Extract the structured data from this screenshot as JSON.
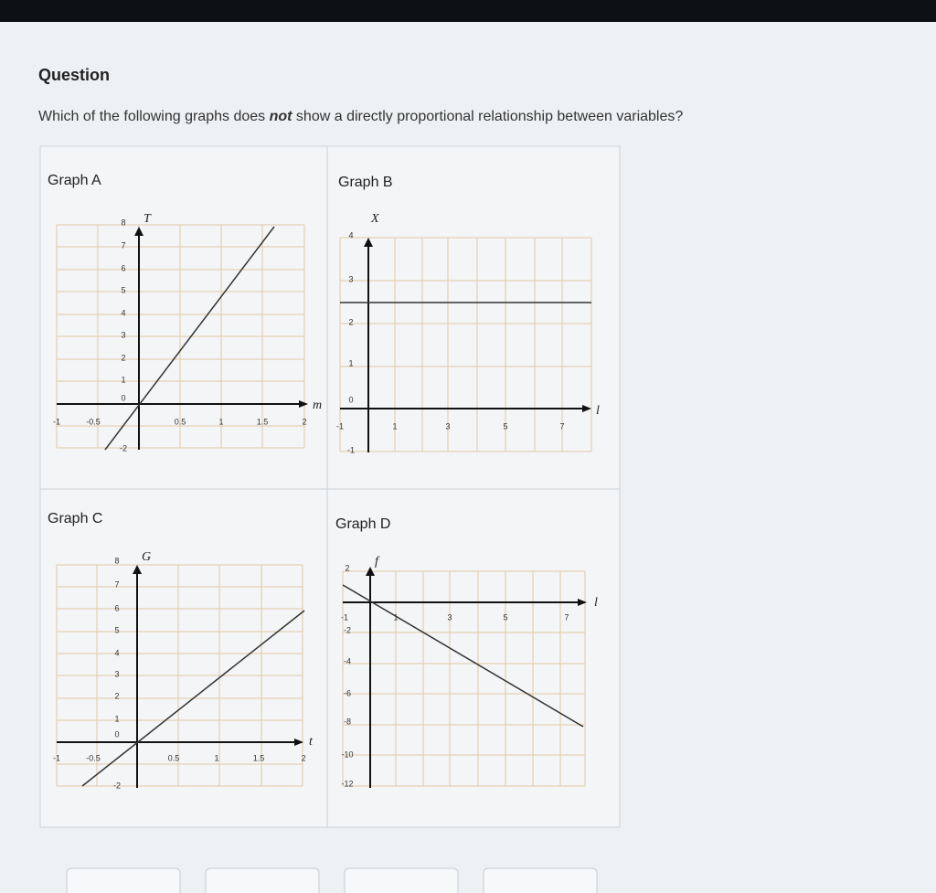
{
  "question": {
    "label": "Question",
    "prompt_before": "Which of the following graphs does",
    "prompt_emphasis": "not",
    "prompt_after": "show a directly proportional relationship between variables?"
  },
  "graphs": [
    {
      "title": "Graph A",
      "y_axis_label": "T",
      "x_axis_label": "m",
      "y_tick_labels": [
        "8",
        "7",
        "6",
        "5",
        "4",
        "3",
        "2",
        "1",
        "0",
        "-2"
      ],
      "x_tick_labels": [
        "-1",
        "-0.5",
        "0.5",
        "1",
        "1.5",
        "2"
      ]
    },
    {
      "title": "Graph B",
      "y_axis_label": "X",
      "x_axis_label": "l",
      "y_tick_labels": [
        "4",
        "3",
        "2",
        "1",
        "0",
        "-1"
      ],
      "x_tick_labels": [
        "-1",
        "1",
        "3",
        "5",
        "7"
      ]
    },
    {
      "title": "Graph C",
      "y_axis_label": "G",
      "x_axis_label": "t",
      "y_tick_labels": [
        "8",
        "7",
        "6",
        "5",
        "4",
        "3",
        "2",
        "1",
        "0",
        "-2"
      ],
      "x_tick_labels": [
        "-1",
        "-0.5",
        "0.5",
        "1",
        "1.5",
        "2"
      ]
    },
    {
      "title": "Graph D",
      "y_axis_label": "f",
      "x_axis_label": "l",
      "y_tick_labels": [
        "2",
        "-2",
        "-4",
        "-6",
        "-8",
        "-10",
        "-12"
      ],
      "x_tick_labels": [
        "-1",
        "1",
        "3",
        "5",
        "7"
      ]
    }
  ]
}
